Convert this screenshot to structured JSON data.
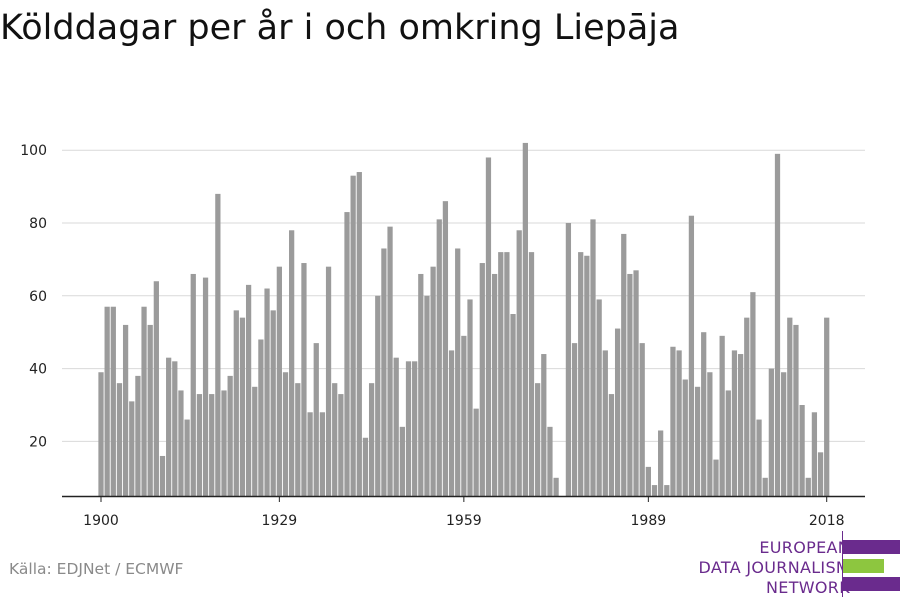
{
  "chart_data": {
    "type": "bar",
    "title": "Kölddagar per år i och omkring Liepāja",
    "xlabel": "",
    "ylabel": "",
    "x_range": [
      1900,
      2018
    ],
    "ylim": [
      5,
      105
    ],
    "yticks": [
      20,
      40,
      60,
      80,
      100
    ],
    "xticks": [
      1900,
      1929,
      1959,
      1989,
      2018
    ],
    "grid": true,
    "bar_color": "#9b9b9b",
    "years": [
      1900,
      1901,
      1902,
      1903,
      1904,
      1905,
      1906,
      1907,
      1908,
      1909,
      1910,
      1911,
      1912,
      1913,
      1914,
      1915,
      1916,
      1917,
      1918,
      1919,
      1920,
      1921,
      1922,
      1923,
      1924,
      1925,
      1926,
      1927,
      1928,
      1929,
      1930,
      1931,
      1932,
      1933,
      1934,
      1935,
      1936,
      1937,
      1938,
      1939,
      1940,
      1941,
      1942,
      1943,
      1944,
      1945,
      1946,
      1947,
      1948,
      1949,
      1950,
      1951,
      1952,
      1953,
      1954,
      1955,
      1956,
      1957,
      1958,
      1959,
      1960,
      1961,
      1962,
      1963,
      1964,
      1965,
      1966,
      1967,
      1968,
      1969,
      1970,
      1971,
      1972,
      1973,
      1974,
      1975,
      1976,
      1977,
      1978,
      1979,
      1980,
      1981,
      1982,
      1983,
      1984,
      1985,
      1986,
      1987,
      1988,
      1989,
      1990,
      1991,
      1992,
      1993,
      1994,
      1995,
      1996,
      1997,
      1998,
      1999,
      2000,
      2001,
      2002,
      2003,
      2004,
      2005,
      2006,
      2007,
      2008,
      2009,
      2010,
      2011,
      2012,
      2013,
      2014,
      2015,
      2016,
      2017,
      2018
    ],
    "values": [
      39,
      57,
      57,
      36,
      52,
      31,
      38,
      57,
      52,
      64,
      16,
      43,
      42,
      34,
      26,
      66,
      33,
      65,
      33,
      88,
      34,
      38,
      56,
      54,
      63,
      35,
      48,
      62,
      56,
      68,
      39,
      78,
      36,
      69,
      28,
      47,
      28,
      68,
      36,
      33,
      83,
      93,
      94,
      21,
      36,
      60,
      73,
      79,
      43,
      24,
      42,
      42,
      66,
      60,
      68,
      81,
      86,
      45,
      73,
      49,
      59,
      29,
      69,
      98,
      66,
      72,
      72,
      55,
      78,
      102,
      72,
      36,
      44,
      24,
      10,
      5,
      80,
      47,
      72,
      71,
      81,
      59,
      45,
      33,
      51,
      77,
      66,
      67,
      47,
      13,
      8,
      23,
      8,
      46,
      45,
      37,
      82,
      35,
      50,
      39,
      15,
      49,
      34,
      45,
      44,
      54,
      61,
      26,
      10,
      40,
      99,
      39,
      54,
      52,
      30,
      10,
      28,
      17,
      54
    ]
  },
  "source": "Källa: EDJNet / ECMWF",
  "logo": {
    "line1": "EUROPEAN",
    "line2": "DATA JOURNALISM",
    "line3": "NETWORK",
    "purple": "#6a2b8d",
    "green": "#8dc63f"
  }
}
